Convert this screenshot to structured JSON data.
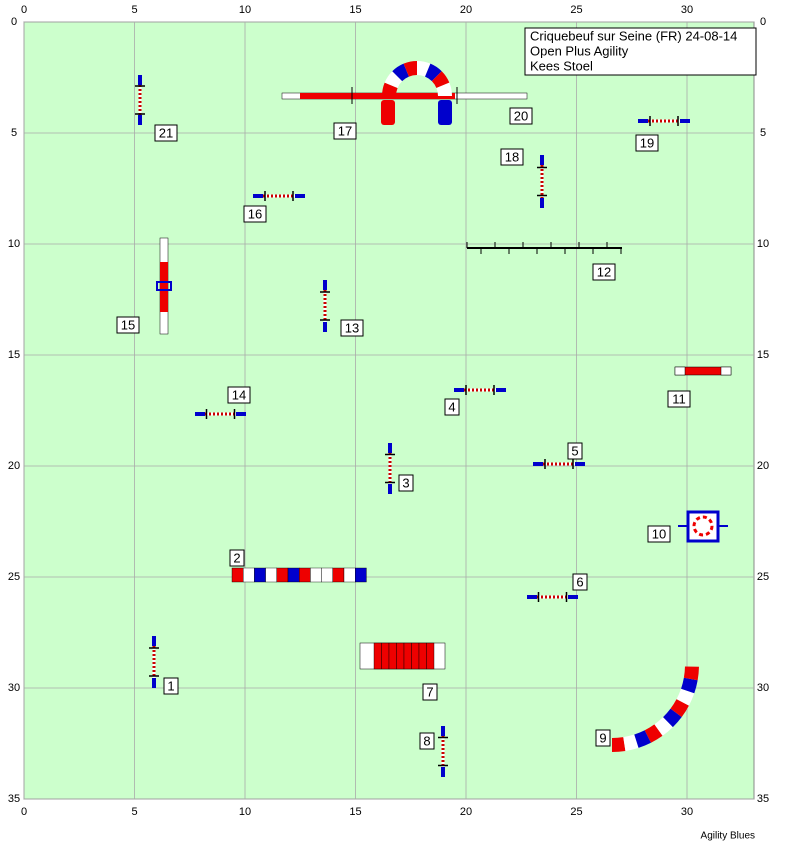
{
  "header": {
    "lines": [
      "Criquebeuf sur Seine (FR) 24-08-14",
      "Open Plus Agility",
      "Kees Stoel"
    ]
  },
  "axis": {
    "xticks": [
      0,
      5,
      10,
      15,
      20,
      25,
      30
    ],
    "yticks": [
      0,
      5,
      10,
      15,
      20,
      25,
      30,
      35
    ]
  },
  "obstacles": [
    {
      "label": "1"
    },
    {
      "label": "2"
    },
    {
      "label": "3"
    },
    {
      "label": "4"
    },
    {
      "label": "5"
    },
    {
      "label": "6"
    },
    {
      "label": "7"
    },
    {
      "label": "8"
    },
    {
      "label": "9"
    },
    {
      "label": "10"
    },
    {
      "label": "11"
    },
    {
      "label": "12"
    },
    {
      "label": "13"
    },
    {
      "label": "14"
    },
    {
      "label": "15"
    },
    {
      "label": "16"
    },
    {
      "label": "17"
    },
    {
      "label": "18"
    },
    {
      "label": "19"
    },
    {
      "label": "20"
    },
    {
      "label": "21"
    }
  ],
  "footer": "Agility Blues"
}
